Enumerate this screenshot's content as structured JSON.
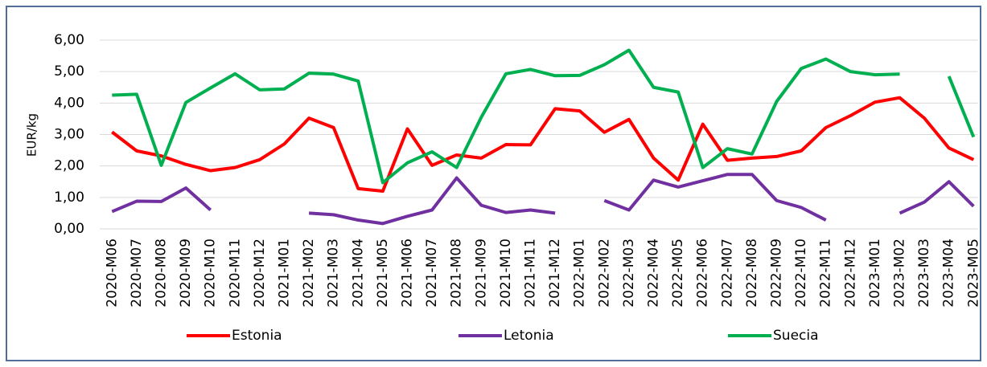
{
  "chart_data": {
    "type": "line",
    "y_label": "EUR/kg",
    "categories": [
      "2020-M06",
      "2020-M07",
      "2020-M08",
      "2020-M09",
      "2020-M10",
      "2020-M11",
      "2020-M12",
      "2021-M01",
      "2021-M02",
      "2021-M03",
      "2021-M04",
      "2021-M05",
      "2021-M06",
      "2021-M07",
      "2021-M08",
      "2021-M09",
      "2021-M10",
      "2021-M11",
      "2021-M12",
      "2022-M01",
      "2022-M02",
      "2022-M03",
      "2022-M04",
      "2022-M05",
      "2022-M06",
      "2022-M07",
      "2022-M08",
      "2022-M09",
      "2022-M10",
      "2022-M11",
      "2022-M12",
      "2023-M01",
      "2023-M02",
      "2023-M03",
      "2023-M04",
      "2023-M05"
    ],
    "series": [
      {
        "name": "Estonia",
        "color": "#ff0000",
        "values": [
          3.08,
          2.48,
          2.32,
          2.05,
          1.85,
          1.95,
          2.2,
          2.7,
          3.52,
          3.22,
          1.28,
          1.2,
          3.18,
          2.02,
          2.35,
          2.25,
          2.68,
          2.67,
          3.82,
          3.75,
          3.07,
          3.48,
          2.25,
          1.55,
          3.33,
          2.18,
          2.25,
          2.3,
          2.48,
          3.22,
          3.6,
          4.03,
          4.17,
          3.52,
          2.57,
          2.2
        ]
      },
      {
        "name": "Letonia",
        "color": "#7030a0",
        "values": [
          0.55,
          0.88,
          0.87,
          1.3,
          0.6,
          null,
          null,
          null,
          0.5,
          0.45,
          0.28,
          0.17,
          0.4,
          0.6,
          1.62,
          0.75,
          0.52,
          0.6,
          0.5,
          null,
          0.9,
          0.6,
          1.55,
          1.33,
          1.53,
          1.73,
          1.73,
          0.9,
          0.68,
          0.28,
          null,
          null,
          0.5,
          0.85,
          1.5,
          0.72
        ]
      },
      {
        "name": "Suecia",
        "color": "#00b050",
        "values": [
          4.25,
          4.28,
          2.02,
          4.02,
          4.48,
          4.93,
          4.42,
          4.45,
          4.95,
          4.92,
          4.7,
          1.47,
          2.1,
          2.45,
          1.95,
          3.55,
          4.93,
          5.07,
          4.87,
          4.88,
          5.22,
          5.68,
          4.5,
          4.35,
          1.95,
          2.55,
          2.38,
          4.05,
          5.1,
          5.4,
          5.0,
          4.9,
          4.92,
          null,
          4.85,
          2.92
        ]
      }
    ],
    "ylim": [
      0,
      6
    ],
    "yticks": [
      {
        "value": 0,
        "label": "0,00"
      },
      {
        "value": 1,
        "label": "1,00"
      },
      {
        "value": 2,
        "label": "2,00"
      },
      {
        "value": 3,
        "label": "3,00"
      },
      {
        "value": 4,
        "label": "4,00"
      },
      {
        "value": 5,
        "label": "5,00"
      },
      {
        "value": 6,
        "label": "6,00"
      }
    ],
    "grid": true,
    "legend": "bottom"
  }
}
